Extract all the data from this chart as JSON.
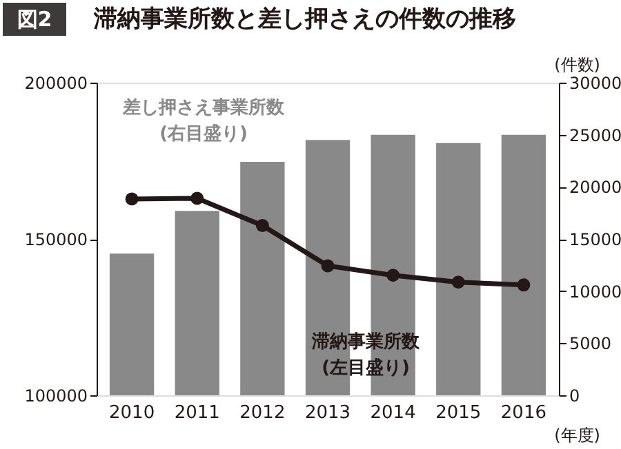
{
  "chart_data": {
    "type": "bar",
    "title": "滞納事業所数と差し押さえの件数の推移",
    "annotations": [
      "図2"
    ],
    "xlabel": "(年度)",
    "y2label": "(件数)",
    "categories": [
      "2010",
      "2011",
      "2012",
      "2013",
      "2014",
      "2015",
      "2016"
    ],
    "series": [
      {
        "name": "差し押さえ事業所数\n(右目盛り)",
        "axis": "y2",
        "color": "#898989",
        "values": [
          13600,
          17700,
          22400,
          24500,
          25000,
          24200,
          25000
        ]
      },
      {
        "name": "滞納事業所数\n(左目盛り)",
        "type": "line",
        "color": "#231815",
        "values": [
          162800,
          163000,
          154300,
          141400,
          138400,
          136200,
          135300
        ]
      }
    ],
    "ylim": [
      100000,
      200000
    ],
    "yticks": [
      100000,
      150000,
      200000
    ],
    "y2lim": [
      0,
      30000
    ],
    "y2ticks": [
      0,
      5000,
      10000,
      15000,
      20000,
      25000,
      30000
    ],
    "marker": "circle",
    "grid": false
  }
}
